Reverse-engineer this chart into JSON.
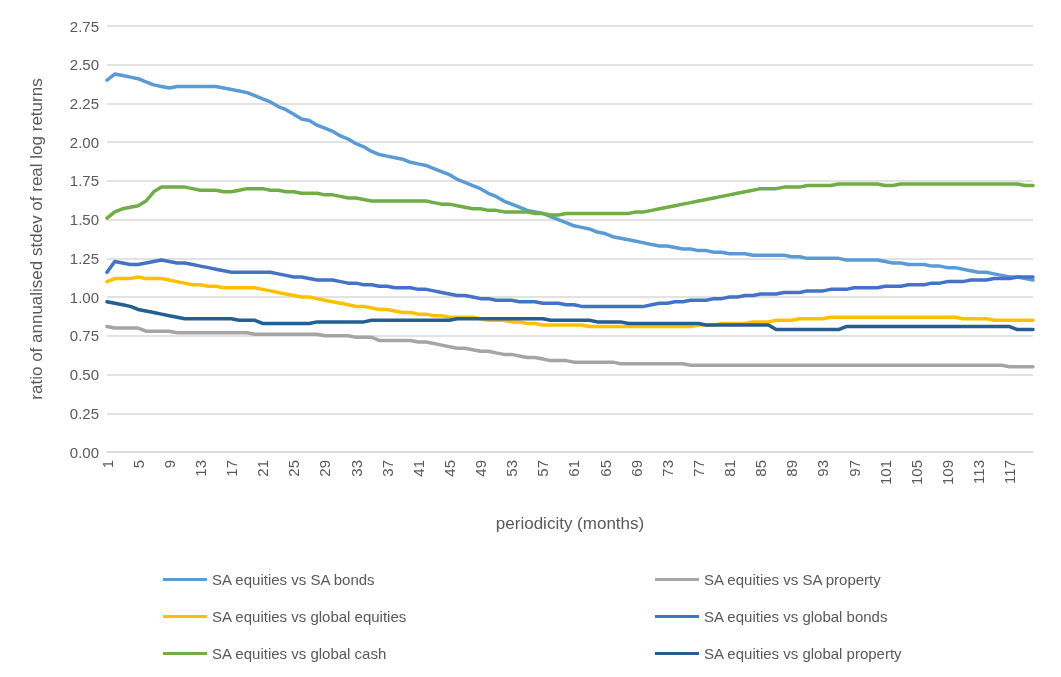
{
  "chart_data": {
    "type": "line",
    "xlabel": "periodicity (months)",
    "ylabel": "ratio of annualised stdev of real log returns",
    "categories": [
      "1",
      null,
      null,
      null,
      "5",
      null,
      null,
      null,
      "9",
      null,
      null,
      null,
      "13",
      null,
      null,
      null,
      "17",
      null,
      null,
      null,
      "21",
      null,
      null,
      null,
      "25",
      null,
      null,
      null,
      "29",
      null,
      null,
      null,
      "33",
      null,
      null,
      null,
      "37",
      null,
      null,
      null,
      "41",
      null,
      null,
      null,
      "45",
      null,
      null,
      null,
      "49",
      null,
      null,
      null,
      "53",
      null,
      null,
      null,
      "57",
      null,
      null,
      null,
      "61",
      null,
      null,
      null,
      "65",
      null,
      null,
      null,
      "69",
      null,
      null,
      null,
      "73",
      null,
      null,
      null,
      "77",
      null,
      null,
      null,
      "81",
      null,
      null,
      null,
      "85",
      null,
      null,
      null,
      "89",
      null,
      null,
      null,
      "93",
      null,
      null,
      null,
      "97",
      null,
      null,
      null,
      "101",
      null,
      null,
      null,
      "105",
      null,
      null,
      null,
      "109",
      null,
      null,
      null,
      "113",
      null,
      null,
      null,
      "117",
      null,
      null,
      null
    ],
    "ylim": [
      0,
      2.75
    ],
    "yticks": [
      {
        "value": 0,
        "label": "0.00"
      },
      {
        "value": 0.25,
        "label": "0.25"
      },
      {
        "value": 0.5,
        "label": "0.50"
      },
      {
        "value": 0.75,
        "label": "0.75"
      },
      {
        "value": 1,
        "label": "1.00"
      },
      {
        "value": 1.25,
        "label": "1.25"
      },
      {
        "value": 1.5,
        "label": "1.50"
      },
      {
        "value": 1.75,
        "label": "1.75"
      },
      {
        "value": 2,
        "label": "2.00"
      },
      {
        "value": 2.25,
        "label": "2.25"
      },
      {
        "value": 2.5,
        "label": "2.50"
      },
      {
        "value": 2.75,
        "label": "2.75"
      }
    ],
    "grid": "y",
    "legend": "bottom",
    "marker": "none",
    "line_style": "solid",
    "series": [
      {
        "name": "SA equities vs SA bonds",
        "color": "#5b9bd5",
        "values": [
          2.4,
          2.44,
          2.43,
          2.42,
          2.41,
          2.39,
          2.37,
          2.36,
          2.35,
          2.36,
          2.36,
          2.36,
          2.36,
          2.36,
          2.36,
          2.35,
          2.34,
          2.33,
          2.32,
          2.3,
          2.28,
          2.26,
          2.23,
          2.21,
          2.18,
          2.15,
          2.14,
          2.11,
          2.09,
          2.07,
          2.04,
          2.02,
          1.99,
          1.97,
          1.94,
          1.92,
          1.91,
          1.9,
          1.89,
          1.87,
          1.86,
          1.85,
          1.83,
          1.81,
          1.79,
          1.76,
          1.74,
          1.72,
          1.7,
          1.67,
          1.65,
          1.62,
          1.6,
          1.58,
          1.56,
          1.55,
          1.54,
          1.52,
          1.5,
          1.48,
          1.46,
          1.45,
          1.44,
          1.42,
          1.41,
          1.39,
          1.38,
          1.37,
          1.36,
          1.35,
          1.34,
          1.33,
          1.33,
          1.32,
          1.31,
          1.31,
          1.3,
          1.3,
          1.29,
          1.29,
          1.28,
          1.28,
          1.28,
          1.27,
          1.27,
          1.27,
          1.27,
          1.27,
          1.26,
          1.26,
          1.25,
          1.25,
          1.25,
          1.25,
          1.25,
          1.24,
          1.24,
          1.24,
          1.24,
          1.24,
          1.23,
          1.22,
          1.22,
          1.21,
          1.21,
          1.21,
          1.2,
          1.2,
          1.19,
          1.19,
          1.18,
          1.17,
          1.16,
          1.16,
          1.15,
          1.14,
          1.13,
          1.13,
          1.12,
          1.11
        ]
      },
      {
        "name": "SA equities vs SA property",
        "color": "#a5a5a5",
        "values": [
          0.81,
          0.8,
          0.8,
          0.8,
          0.8,
          0.78,
          0.78,
          0.78,
          0.78,
          0.77,
          0.77,
          0.77,
          0.77,
          0.77,
          0.77,
          0.77,
          0.77,
          0.77,
          0.77,
          0.76,
          0.76,
          0.76,
          0.76,
          0.76,
          0.76,
          0.76,
          0.76,
          0.76,
          0.75,
          0.75,
          0.75,
          0.75,
          0.74,
          0.74,
          0.74,
          0.72,
          0.72,
          0.72,
          0.72,
          0.72,
          0.71,
          0.71,
          0.7,
          0.69,
          0.68,
          0.67,
          0.67,
          0.66,
          0.65,
          0.65,
          0.64,
          0.63,
          0.63,
          0.62,
          0.61,
          0.61,
          0.6,
          0.59,
          0.59,
          0.59,
          0.58,
          0.58,
          0.58,
          0.58,
          0.58,
          0.58,
          0.57,
          0.57,
          0.57,
          0.57,
          0.57,
          0.57,
          0.57,
          0.57,
          0.57,
          0.56,
          0.56,
          0.56,
          0.56,
          0.56,
          0.56,
          0.56,
          0.56,
          0.56,
          0.56,
          0.56,
          0.56,
          0.56,
          0.56,
          0.56,
          0.56,
          0.56,
          0.56,
          0.56,
          0.56,
          0.56,
          0.56,
          0.56,
          0.56,
          0.56,
          0.56,
          0.56,
          0.56,
          0.56,
          0.56,
          0.56,
          0.56,
          0.56,
          0.56,
          0.56,
          0.56,
          0.56,
          0.56,
          0.56,
          0.56,
          0.56,
          0.55,
          0.55,
          0.55,
          0.55
        ]
      },
      {
        "name": "SA equities vs global equities",
        "color": "#ffc000",
        "values": [
          1.1,
          1.12,
          1.12,
          1.12,
          1.13,
          1.12,
          1.12,
          1.12,
          1.11,
          1.1,
          1.09,
          1.08,
          1.08,
          1.07,
          1.07,
          1.06,
          1.06,
          1.06,
          1.06,
          1.06,
          1.05,
          1.04,
          1.03,
          1.02,
          1.01,
          1.0,
          1.0,
          0.99,
          0.98,
          0.97,
          0.96,
          0.95,
          0.94,
          0.94,
          0.93,
          0.92,
          0.92,
          0.91,
          0.9,
          0.9,
          0.89,
          0.89,
          0.88,
          0.88,
          0.87,
          0.87,
          0.87,
          0.87,
          0.86,
          0.85,
          0.85,
          0.85,
          0.84,
          0.84,
          0.83,
          0.83,
          0.82,
          0.82,
          0.82,
          0.82,
          0.82,
          0.82,
          0.81,
          0.81,
          0.81,
          0.81,
          0.81,
          0.81,
          0.81,
          0.81,
          0.81,
          0.81,
          0.81,
          0.81,
          0.81,
          0.81,
          0.82,
          0.82,
          0.82,
          0.83,
          0.83,
          0.83,
          0.83,
          0.84,
          0.84,
          0.84,
          0.85,
          0.85,
          0.85,
          0.86,
          0.86,
          0.86,
          0.86,
          0.87,
          0.87,
          0.87,
          0.87,
          0.87,
          0.87,
          0.87,
          0.87,
          0.87,
          0.87,
          0.87,
          0.87,
          0.87,
          0.87,
          0.87,
          0.87,
          0.87,
          0.86,
          0.86,
          0.86,
          0.86,
          0.85,
          0.85,
          0.85,
          0.85,
          0.85,
          0.85
        ]
      },
      {
        "name": "SA equities vs global bonds",
        "color": "#4472c4",
        "values": [
          1.16,
          1.23,
          1.22,
          1.21,
          1.21,
          1.22,
          1.23,
          1.24,
          1.23,
          1.22,
          1.22,
          1.21,
          1.2,
          1.19,
          1.18,
          1.17,
          1.16,
          1.16,
          1.16,
          1.16,
          1.16,
          1.16,
          1.15,
          1.14,
          1.13,
          1.13,
          1.12,
          1.11,
          1.11,
          1.11,
          1.1,
          1.09,
          1.09,
          1.08,
          1.08,
          1.07,
          1.07,
          1.06,
          1.06,
          1.06,
          1.05,
          1.05,
          1.04,
          1.03,
          1.02,
          1.01,
          1.01,
          1.0,
          0.99,
          0.99,
          0.98,
          0.98,
          0.98,
          0.97,
          0.97,
          0.97,
          0.96,
          0.96,
          0.96,
          0.95,
          0.95,
          0.94,
          0.94,
          0.94,
          0.94,
          0.94,
          0.94,
          0.94,
          0.94,
          0.94,
          0.95,
          0.96,
          0.96,
          0.97,
          0.97,
          0.98,
          0.98,
          0.98,
          0.99,
          0.99,
          1.0,
          1.0,
          1.01,
          1.01,
          1.02,
          1.02,
          1.02,
          1.03,
          1.03,
          1.03,
          1.04,
          1.04,
          1.04,
          1.05,
          1.05,
          1.05,
          1.06,
          1.06,
          1.06,
          1.06,
          1.07,
          1.07,
          1.07,
          1.08,
          1.08,
          1.08,
          1.09,
          1.09,
          1.1,
          1.1,
          1.1,
          1.11,
          1.11,
          1.11,
          1.12,
          1.12,
          1.12,
          1.13,
          1.13,
          1.13
        ]
      },
      {
        "name": "SA equities vs global cash",
        "color": "#70ad47",
        "values": [
          1.51,
          1.55,
          1.57,
          1.58,
          1.59,
          1.62,
          1.68,
          1.71,
          1.71,
          1.71,
          1.71,
          1.7,
          1.69,
          1.69,
          1.69,
          1.68,
          1.68,
          1.69,
          1.7,
          1.7,
          1.7,
          1.69,
          1.69,
          1.68,
          1.68,
          1.67,
          1.67,
          1.67,
          1.66,
          1.66,
          1.65,
          1.64,
          1.64,
          1.63,
          1.62,
          1.62,
          1.62,
          1.62,
          1.62,
          1.62,
          1.62,
          1.62,
          1.61,
          1.6,
          1.6,
          1.59,
          1.58,
          1.57,
          1.57,
          1.56,
          1.56,
          1.55,
          1.55,
          1.55,
          1.55,
          1.54,
          1.54,
          1.53,
          1.53,
          1.54,
          1.54,
          1.54,
          1.54,
          1.54,
          1.54,
          1.54,
          1.54,
          1.54,
          1.55,
          1.55,
          1.56,
          1.57,
          1.58,
          1.59,
          1.6,
          1.61,
          1.62,
          1.63,
          1.64,
          1.65,
          1.66,
          1.67,
          1.68,
          1.69,
          1.7,
          1.7,
          1.7,
          1.71,
          1.71,
          1.71,
          1.72,
          1.72,
          1.72,
          1.72,
          1.73,
          1.73,
          1.73,
          1.73,
          1.73,
          1.73,
          1.72,
          1.72,
          1.73,
          1.73,
          1.73,
          1.73,
          1.73,
          1.73,
          1.73,
          1.73,
          1.73,
          1.73,
          1.73,
          1.73,
          1.73,
          1.73,
          1.73,
          1.73,
          1.72,
          1.72
        ]
      },
      {
        "name": "SA equities vs global property",
        "color": "#255e91",
        "values": [
          0.97,
          0.96,
          0.95,
          0.94,
          0.92,
          0.91,
          0.9,
          0.89,
          0.88,
          0.87,
          0.86,
          0.86,
          0.86,
          0.86,
          0.86,
          0.86,
          0.86,
          0.85,
          0.85,
          0.85,
          0.83,
          0.83,
          0.83,
          0.83,
          0.83,
          0.83,
          0.83,
          0.84,
          0.84,
          0.84,
          0.84,
          0.84,
          0.84,
          0.84,
          0.85,
          0.85,
          0.85,
          0.85,
          0.85,
          0.85,
          0.85,
          0.85,
          0.85,
          0.85,
          0.85,
          0.86,
          0.86,
          0.86,
          0.86,
          0.86,
          0.86,
          0.86,
          0.86,
          0.86,
          0.86,
          0.86,
          0.86,
          0.85,
          0.85,
          0.85,
          0.85,
          0.85,
          0.85,
          0.84,
          0.84,
          0.84,
          0.84,
          0.83,
          0.83,
          0.83,
          0.83,
          0.83,
          0.83,
          0.83,
          0.83,
          0.83,
          0.83,
          0.82,
          0.82,
          0.82,
          0.82,
          0.82,
          0.82,
          0.82,
          0.82,
          0.82,
          0.79,
          0.79,
          0.79,
          0.79,
          0.79,
          0.79,
          0.79,
          0.79,
          0.79,
          0.81,
          0.81,
          0.81,
          0.81,
          0.81,
          0.81,
          0.81,
          0.81,
          0.81,
          0.81,
          0.81,
          0.81,
          0.81,
          0.81,
          0.81,
          0.81,
          0.81,
          0.81,
          0.81,
          0.81,
          0.81,
          0.81,
          0.79,
          0.79,
          0.79
        ]
      }
    ]
  }
}
